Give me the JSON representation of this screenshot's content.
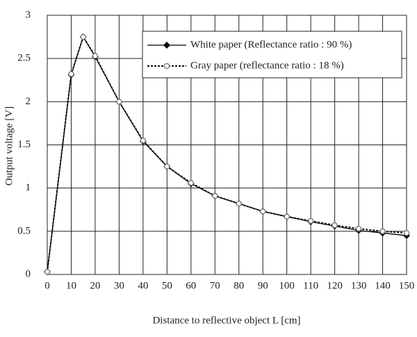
{
  "chart_data": {
    "type": "line",
    "xlabel": "Distance to reflective object L [cm]",
    "ylabel": "Output voltage [V]",
    "x": [
      0,
      10,
      15,
      20,
      30,
      40,
      50,
      60,
      70,
      80,
      90,
      100,
      110,
      120,
      130,
      140,
      150
    ],
    "series": [
      {
        "name": "White paper (Reflectance ratio : 90 %)",
        "color": "#000000",
        "values": [
          0.03,
          2.31,
          2.75,
          2.52,
          2.0,
          1.54,
          1.25,
          1.05,
          0.91,
          0.82,
          0.73,
          0.67,
          0.61,
          0.56,
          0.51,
          0.48,
          0.45
        ]
      },
      {
        "name": "Gray paper (reflectance ratio : 18 %)",
        "color": "#808080",
        "values": [
          0.03,
          2.32,
          2.75,
          2.53,
          2.0,
          1.55,
          1.25,
          1.06,
          0.91,
          0.82,
          0.73,
          0.67,
          0.62,
          0.57,
          0.53,
          0.5,
          0.48
        ]
      }
    ],
    "xlim": [
      0,
      150
    ],
    "xticks": [
      0,
      10,
      20,
      30,
      40,
      50,
      60,
      70,
      80,
      90,
      100,
      110,
      120,
      130,
      140,
      150
    ],
    "ylim": [
      0,
      3
    ],
    "yticks": [
      0,
      0.5,
      1,
      1.5,
      2,
      2.5,
      3
    ],
    "grid": true,
    "legend": "upper right"
  }
}
